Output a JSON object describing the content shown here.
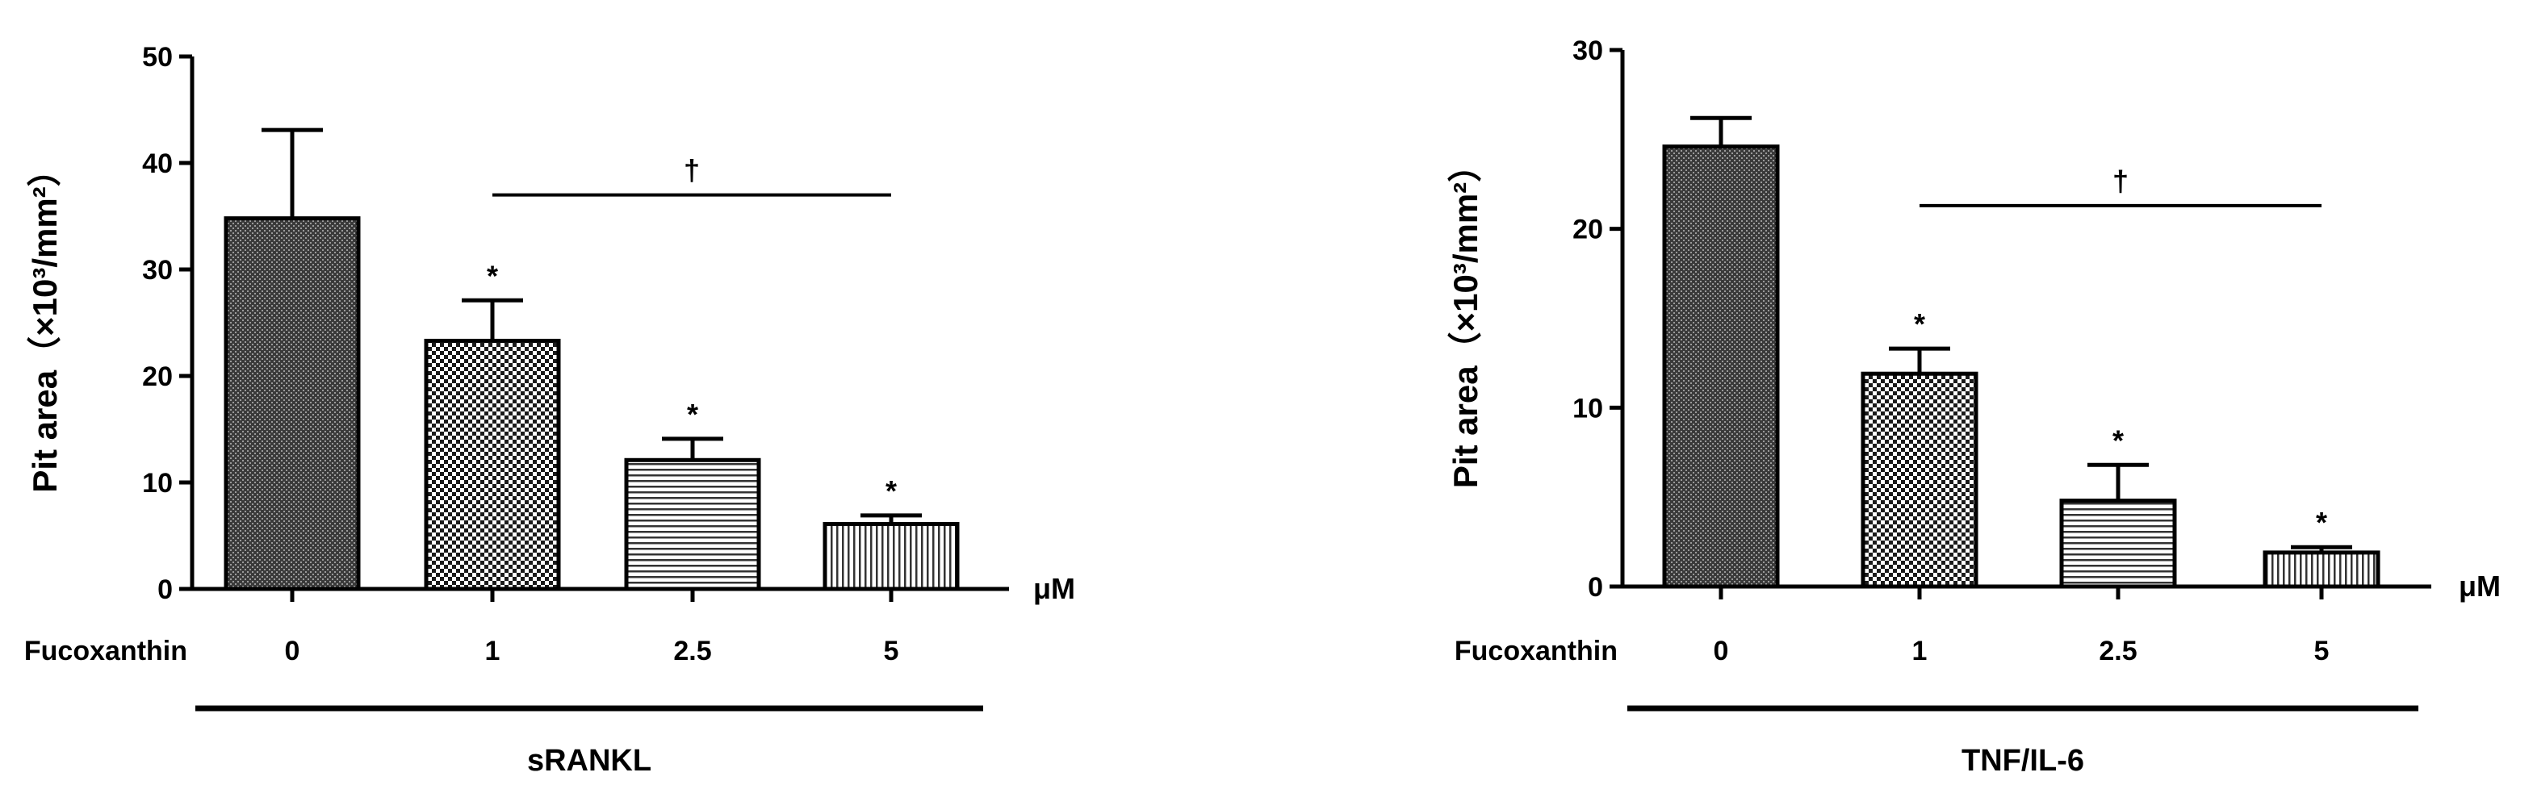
{
  "chart_data": [
    {
      "type": "bar",
      "ylabel": "Pit area（×10³/mm²）",
      "ylim": [
        0,
        50
      ],
      "yticks": [
        0,
        10,
        20,
        30,
        40,
        50
      ],
      "unit_label": "μM",
      "row_label": "Fucoxanthin",
      "categories": [
        "0",
        "1",
        "2.5",
        "5"
      ],
      "values": [
        34.8,
        23.3,
        12.1,
        6.1
      ],
      "errors": [
        8.3,
        3.8,
        2.0,
        0.8
      ],
      "patterns": [
        "dark-mesh",
        "checker",
        "horizontal-lines",
        "vertical-lines"
      ],
      "significance_marks": [
        "",
        "*",
        "*",
        "*"
      ],
      "bracket_mark": "†",
      "bracket_span": [
        "1",
        "5"
      ],
      "bracket_y": 37,
      "group_label": "sRANKL",
      "grid": false
    },
    {
      "type": "bar",
      "ylabel": "Pit area（×10³/mm²）",
      "ylim": [
        0,
        30
      ],
      "yticks": [
        0,
        10,
        20,
        30
      ],
      "unit_label": "μM",
      "row_label": "Fucoxanthin",
      "categories": [
        "0",
        "1",
        "2.5",
        "5"
      ],
      "values": [
        24.6,
        11.9,
        4.8,
        1.9
      ],
      "errors": [
        1.6,
        1.4,
        2.0,
        0.3
      ],
      "patterns": [
        "dark-mesh",
        "checker",
        "horizontal-lines",
        "vertical-lines"
      ],
      "significance_marks": [
        "",
        "*",
        "*",
        "*"
      ],
      "bracket_mark": "†",
      "bracket_span": [
        "1",
        "5"
      ],
      "bracket_y": 21.3,
      "group_label": "TNF/IL-6",
      "grid": false
    }
  ]
}
